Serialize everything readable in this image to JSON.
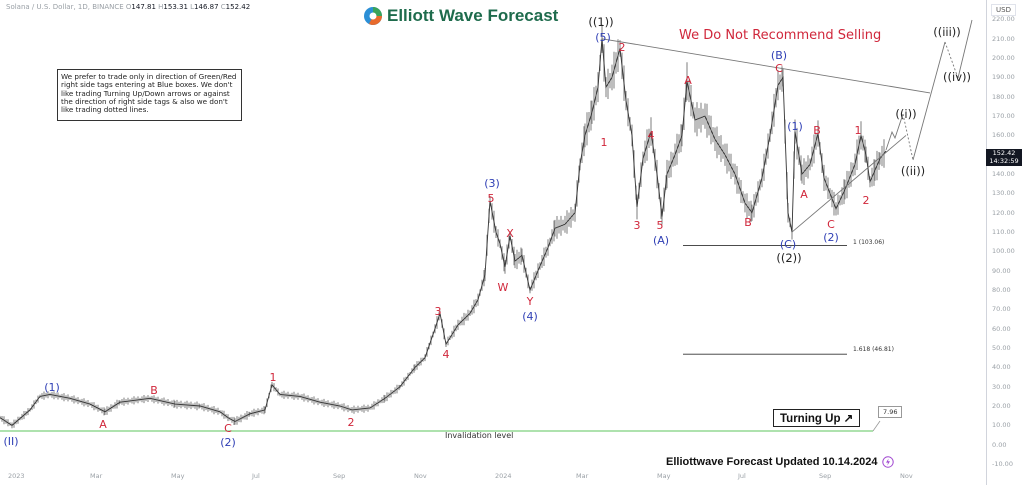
{
  "header": {
    "symbol": "Solana / U.S. Dollar, 1D, BINANCE",
    "open_label": "O",
    "open": "147.81",
    "high_label": "H",
    "high": "153.31",
    "low_label": "L",
    "low": "146.87",
    "close_label": "C",
    "close": "152.42",
    "brand": "Elliott Wave Forecast"
  },
  "note_box": "We prefer to trade only in direction of Green/Red right side tags entering at Blue boxes. We don't like trading Turning Up/Down arrows or against the direction of right side tags & also we don't like trading dotted lines.",
  "warning_text": "We Do Not Recommend Selling",
  "price_axis": {
    "currency": "USD",
    "current_price": "152.42",
    "countdown": "14:32:59",
    "ticks": [
      "220.00",
      "210.00",
      "200.00",
      "190.00",
      "180.00",
      "170.00",
      "160.00",
      "150.00",
      "140.00",
      "130.00",
      "120.00",
      "110.00",
      "100.00",
      "90.00",
      "80.00",
      "70.00",
      "60.00",
      "50.00",
      "40.00",
      "30.00",
      "20.00",
      "10.00",
      "0.00",
      "-10.00"
    ]
  },
  "time_axis": {
    "ticks": [
      "2023",
      "Mar",
      "May",
      "Jul",
      "Sep",
      "Nov",
      "2024",
      "Mar",
      "May",
      "Jul",
      "Sep",
      "Nov"
    ]
  },
  "footer": {
    "updated_text": "Elliottwave Forecast Updated 10.14.2024",
    "turning_label": "Turning Up",
    "turning_arrow": "↗",
    "invalidation_value": "7.96",
    "invalidation_label": "Invalidation level"
  },
  "fib_levels": [
    {
      "label": "1 (103.06)",
      "value": 103.06
    },
    {
      "label": "1.618 (46.81)",
      "value": 46.81
    }
  ],
  "colors": {
    "wave_red": "#d0273b",
    "wave_blue": "#2f3fb5",
    "wave_black": "#222222",
    "invalidation_green": "#7ed07e",
    "brand_green": "#1e6b4c",
    "candle": "#555555"
  },
  "chart_data": {
    "type": "line",
    "title": "Solana / U.S. Dollar, 1D, BINANCE",
    "xlabel": "",
    "ylabel": "USD",
    "ylim": [
      -10,
      225
    ],
    "x": [
      "2023-01",
      "2023-02",
      "2023-03",
      "2023-04",
      "2023-05",
      "2023-06",
      "2023-07",
      "2023-08",
      "2023-09",
      "2023-10",
      "2023-11",
      "2023-12",
      "2024-01",
      "2024-02",
      "2024-03",
      "2024-04",
      "2024-05",
      "2024-06",
      "2024-07",
      "2024-08",
      "2024-09",
      "2024-10"
    ],
    "series": [
      {
        "name": "SOLUSD close (approx)",
        "values": [
          9,
          24,
          21,
          22,
          20,
          16,
          28,
          24,
          19,
          27,
          56,
          118,
          85,
          105,
          192,
          150,
          180,
          140,
          175,
          135,
          140,
          152.42
        ]
      }
    ],
    "annotations": {
      "waves": [
        {
          "label": "(II)",
          "color": "blue",
          "price": 8
        },
        {
          "label": "(1)",
          "color": "blue",
          "price": 26
        },
        {
          "label": "A",
          "color": "red",
          "price": 17
        },
        {
          "label": "B",
          "color": "red",
          "price": 25
        },
        {
          "label": "C",
          "color": "red",
          "price": 14
        },
        {
          "label": "(2)",
          "color": "blue",
          "price": 14
        },
        {
          "label": "1",
          "color": "red",
          "price": 32
        },
        {
          "label": "2",
          "color": "red",
          "price": 18
        },
        {
          "label": "3",
          "color": "red",
          "price": 68
        },
        {
          "label": "4",
          "color": "red",
          "price": 52
        },
        {
          "label": "5",
          "color": "red",
          "price": 126
        },
        {
          "label": "(3)",
          "color": "blue",
          "price": 126
        },
        {
          "label": "X",
          "color": "red",
          "price": 110
        },
        {
          "label": "W",
          "color": "red",
          "price": 87
        },
        {
          "label": "Y",
          "color": "red",
          "price": 80
        },
        {
          "label": "(4)",
          "color": "blue",
          "price": 80
        },
        {
          "label": "1",
          "color": "red",
          "price": 158
        },
        {
          "label": "(5)",
          "color": "blue",
          "price": 210
        },
        {
          "label": "((1))",
          "color": "black",
          "price": 210
        },
        {
          "label": "2",
          "color": "red",
          "price": 205
        },
        {
          "label": "3",
          "color": "red",
          "price": 123
        },
        {
          "label": "4",
          "color": "red",
          "price": 162
        },
        {
          "label": "5",
          "color": "red",
          "price": 118
        },
        {
          "label": "(A)",
          "color": "blue",
          "price": 118
        },
        {
          "label": "A",
          "color": "red",
          "price": 188
        },
        {
          "label": "B",
          "color": "red",
          "price": 120
        },
        {
          "label": "C",
          "color": "red",
          "price": 193
        },
        {
          "label": "(B)",
          "color": "blue",
          "price": 193
        },
        {
          "label": "(C)",
          "color": "blue",
          "price": 110
        },
        {
          "label": "((2))",
          "color": "black",
          "price": 110
        },
        {
          "label": "(1)",
          "color": "blue",
          "price": 162
        },
        {
          "label": "A",
          "color": "red",
          "price": 139
        },
        {
          "label": "B",
          "color": "red",
          "price": 161
        },
        {
          "label": "C",
          "color": "red",
          "price": 122
        },
        {
          "label": "(2)",
          "color": "blue",
          "price": 122
        },
        {
          "label": "1",
          "color": "red",
          "price": 160
        },
        {
          "label": "2",
          "color": "red",
          "price": 136
        },
        {
          "label": "((i))",
          "color": "black",
          "price": 172
        },
        {
          "label": "((ii))",
          "color": "black",
          "price": 145
        },
        {
          "label": "((iii))",
          "color": "black",
          "price": 215
        },
        {
          "label": "((iv))",
          "color": "black",
          "price": 195
        }
      ],
      "horizontal_lines": [
        {
          "label": "Invalidation level",
          "value": 7.96
        },
        {
          "label": "1 (103.06)",
          "value": 103.06
        },
        {
          "label": "1.618 (46.81)",
          "value": 46.81
        }
      ],
      "text": [
        "We Do Not Recommend Selling",
        "Turning Up",
        "Elliottwave Forecast Updated 10.14.2024"
      ]
    },
    "grid": false,
    "legend_position": "none"
  }
}
